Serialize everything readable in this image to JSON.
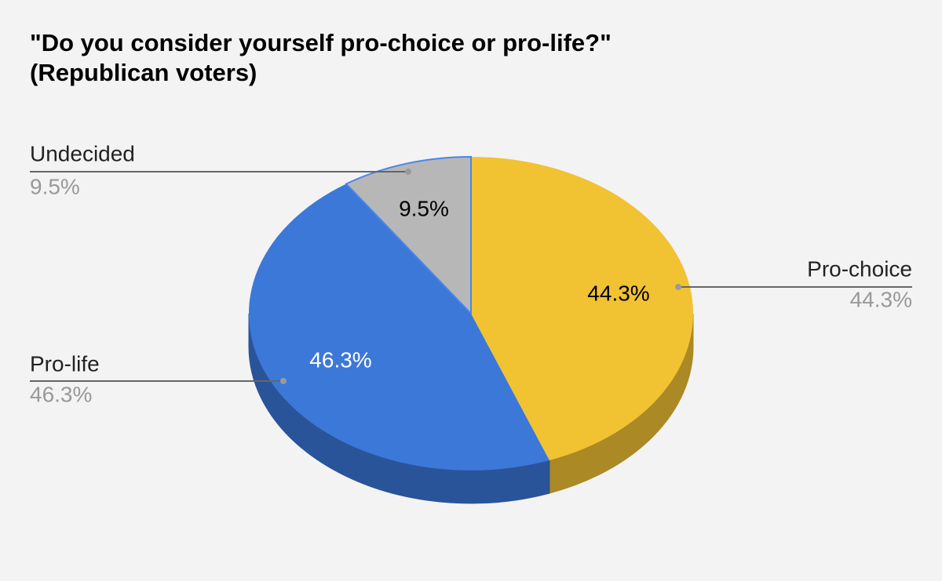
{
  "chart_data": {
    "type": "pie",
    "variant": "3d",
    "title_lines": [
      "\"Do you consider yourself pro-choice or pro-life?\"",
      "(Republican voters)"
    ],
    "slices": [
      {
        "key": "pro-choice",
        "label": "Pro-choice",
        "value": 44.3,
        "percent_label": "44.3%",
        "color": "#f1c232",
        "side_color": "#ab8924",
        "inner_label_color": "#000000"
      },
      {
        "key": "pro-life",
        "label": "Pro-life",
        "value": 46.3,
        "percent_label": "46.3%",
        "color": "#3c78d8",
        "side_color": "#2a5499",
        "inner_label_color": "#ffffff"
      },
      {
        "key": "undecided",
        "label": "Undecided",
        "value": 9.5,
        "percent_label": "9.5%",
        "color": "#b7b7b7",
        "side_color": "#828282",
        "inner_label_color": "#000000",
        "highlighted": true
      }
    ],
    "start_angle_deg": 0,
    "direction": "clockwise",
    "legend": "callout-labels",
    "highlight_color": "#4a86e8",
    "leader_color": "#666666",
    "value_text_color": "#999999",
    "label_text_color": "#222222",
    "background": "#f3f3f3"
  }
}
